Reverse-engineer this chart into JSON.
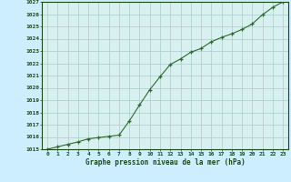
{
  "x": [
    0,
    1,
    2,
    3,
    4,
    5,
    6,
    7,
    8,
    9,
    10,
    11,
    12,
    13,
    14,
    15,
    16,
    17,
    18,
    19,
    20,
    21,
    22,
    23
  ],
  "y": [
    1015.0,
    1015.2,
    1015.4,
    1015.6,
    1015.85,
    1015.95,
    1016.05,
    1016.15,
    1017.3,
    1018.6,
    1019.85,
    1020.9,
    1021.9,
    1022.35,
    1022.9,
    1023.2,
    1023.75,
    1024.1,
    1024.4,
    1024.75,
    1025.2,
    1025.95,
    1026.55,
    1027.0
  ],
  "line_color": "#2d6a2d",
  "marker_color": "#2d6a2d",
  "bg_color": "#cceeff",
  "plot_bg_color": "#d8f0f0",
  "grid_color": "#aacccc",
  "xlabel": "Graphe pression niveau de la mer (hPa)",
  "xlabel_color": "#1a4a1a",
  "tick_color": "#1a4a1a",
  "ylim_min": 1015,
  "ylim_max": 1027,
  "xlim_min": 0,
  "xlim_max": 23,
  "ytick_step": 1,
  "xtick_labels": [
    "0",
    "1",
    "2",
    "3",
    "4",
    "5",
    "6",
    "7",
    "8",
    "9",
    "10",
    "11",
    "12",
    "13",
    "14",
    "15",
    "16",
    "17",
    "18",
    "19",
    "20",
    "21",
    "22",
    "23"
  ]
}
